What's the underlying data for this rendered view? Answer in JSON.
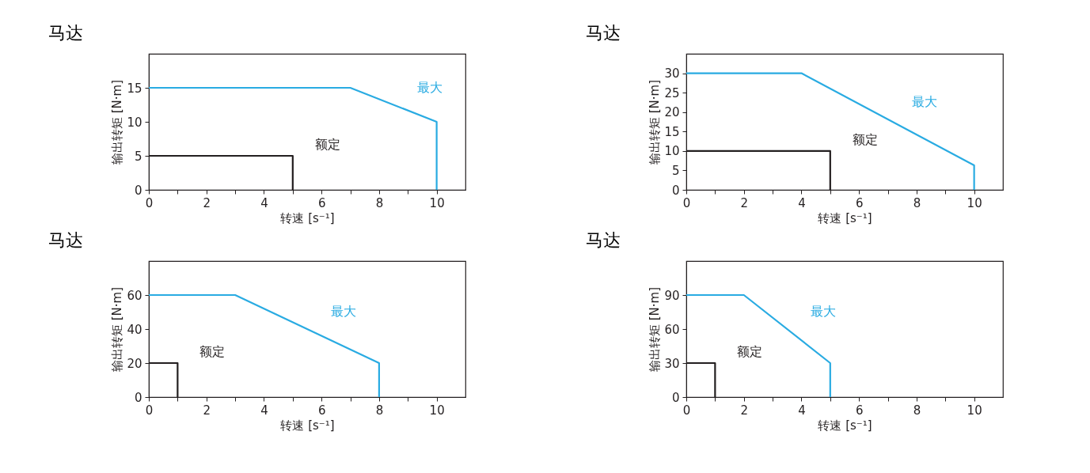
{
  "chart_data": [
    {
      "type": "line",
      "title": "马达",
      "xlabel": "转速 [s⁻¹]",
      "ylabel": "输出转矩 [N·m]",
      "xlim": [
        0,
        11
      ],
      "ylim": [
        0,
        20
      ],
      "xticks": [
        0,
        {
          "value": 1,
          "label": null
        },
        2,
        {
          "value": 3,
          "label": null
        },
        4,
        {
          "value": 5,
          "label": null
        },
        6,
        {
          "value": 7,
          "label": null
        },
        8,
        {
          "value": 9,
          "label": null
        },
        10
      ],
      "yticks": [
        0,
        5,
        10,
        15
      ],
      "grid": false,
      "legend": false,
      "marker": "none",
      "line_style": "solid",
      "series": [
        {
          "name": "最大",
          "x": [
            0,
            7,
            10,
            10
          ],
          "values": [
            15,
            15,
            10,
            0
          ],
          "color": "#29abe2"
        },
        {
          "name": "额定",
          "x": [
            0,
            5,
            5
          ],
          "values": [
            5,
            5,
            0
          ],
          "color": "#231f20"
        }
      ]
    },
    {
      "type": "line",
      "title": "马达",
      "xlabel": "转速 [s⁻¹]",
      "ylabel": "输出转矩 [N·m]",
      "xlim": [
        0,
        11
      ],
      "ylim": [
        0,
        35
      ],
      "xticks": [
        0,
        {
          "value": 1,
          "label": null
        },
        2,
        {
          "value": 3,
          "label": null
        },
        4,
        {
          "value": 5,
          "label": null
        },
        6,
        {
          "value": 7,
          "label": null
        },
        8,
        {
          "value": 9,
          "label": null
        },
        10
      ],
      "yticks": [
        0,
        5,
        10,
        15,
        20,
        25,
        30
      ],
      "grid": false,
      "legend": false,
      "marker": "none",
      "line_style": "solid",
      "series": [
        {
          "name": "最大",
          "x": [
            0,
            4,
            10,
            10
          ],
          "values": [
            30,
            30,
            6.3,
            0
          ],
          "color": "#29abe2"
        },
        {
          "name": "额定",
          "x": [
            0,
            5,
            5
          ],
          "values": [
            10,
            10,
            0
          ],
          "color": "#231f20"
        }
      ]
    },
    {
      "type": "line",
      "title": "马达",
      "xlabel": "转速 [s⁻¹]",
      "ylabel": "输出转矩 [N·m]",
      "xlim": [
        0,
        11
      ],
      "ylim": [
        0,
        80
      ],
      "xticks": [
        0,
        {
          "value": 1,
          "label": null
        },
        2,
        {
          "value": 3,
          "label": null
        },
        4,
        {
          "value": 5,
          "label": null
        },
        6,
        {
          "value": 7,
          "label": null
        },
        8,
        {
          "value": 9,
          "label": null
        },
        10
      ],
      "yticks": [
        0,
        20,
        40,
        60
      ],
      "grid": false,
      "legend": false,
      "marker": "none",
      "line_style": "solid",
      "series": [
        {
          "name": "最大",
          "x": [
            0,
            3,
            8,
            8
          ],
          "values": [
            60,
            60,
            20,
            0
          ],
          "color": "#29abe2"
        },
        {
          "name": "额定",
          "x": [
            0,
            1,
            1
          ],
          "values": [
            20,
            20,
            0
          ],
          "color": "#231f20"
        }
      ]
    },
    {
      "type": "line",
      "title": "马达",
      "xlabel": "转速 [s⁻¹]",
      "ylabel": "输出转矩 [N·m]",
      "xlim": [
        0,
        11
      ],
      "ylim": [
        0,
        120
      ],
      "xticks": [
        0,
        {
          "value": 1,
          "label": null
        },
        2,
        {
          "value": 3,
          "label": null
        },
        4,
        {
          "value": 5,
          "label": null
        },
        6,
        {
          "value": 7,
          "label": null
        },
        8,
        {
          "value": 9,
          "label": null
        },
        10
      ],
      "yticks": [
        0,
        30,
        60,
        90
      ],
      "grid": false,
      "legend": false,
      "marker": "none",
      "line_style": "solid",
      "series": [
        {
          "name": "最大",
          "x": [
            0,
            2,
            5,
            5
          ],
          "values": [
            90,
            90,
            30,
            0
          ],
          "color": "#29abe2"
        },
        {
          "name": "额定",
          "x": [
            0,
            1,
            1
          ],
          "values": [
            30,
            30,
            0
          ],
          "color": "#231f20"
        }
      ]
    }
  ]
}
